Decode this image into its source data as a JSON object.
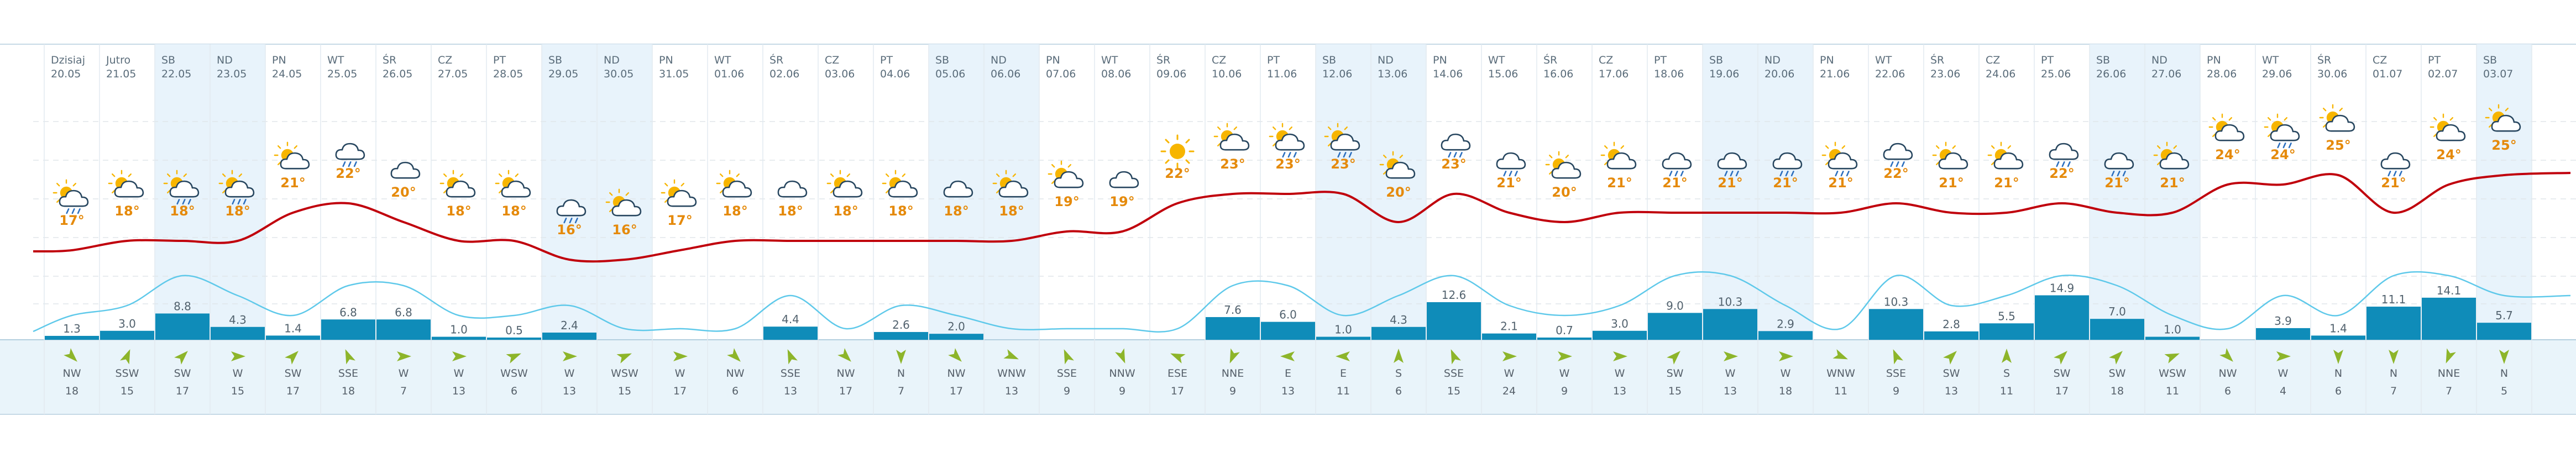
{
  "chart_data": {
    "type": "table",
    "days": [
      {
        "d": "Dzisiaj",
        "dt": "20.05",
        "wk": false,
        "icon": "sun-cloud-rain",
        "t": 17,
        "p": 1.3,
        "pc": 1,
        "dir": "NW",
        "dc": "#8db52a",
        "sp": 18
      },
      {
        "d": "Jutro",
        "dt": "21.05",
        "wk": false,
        "icon": "sun-cloud",
        "t": 18,
        "p": 3.0,
        "pc": 2,
        "dir": "SSW",
        "dc": "#8db52a",
        "sp": 15
      },
      {
        "d": "SB",
        "dt": "22.05",
        "wk": true,
        "icon": "sun-cloud-rain",
        "t": 18,
        "p": 8.8,
        "pc": 5,
        "dir": "SW",
        "dc": "#8db52a",
        "sp": 17
      },
      {
        "d": "ND",
        "dt": "23.05",
        "wk": true,
        "icon": "sun-cloud-rain",
        "t": 18,
        "p": 4.3,
        "pc": 3,
        "dir": "W",
        "dc": "#8db52a",
        "sp": 15
      },
      {
        "d": "PN",
        "dt": "24.05",
        "wk": false,
        "icon": "sun-cloud",
        "t": 21,
        "p": 1.4,
        "pc": 1,
        "dir": "SW",
        "dc": "#8db52a",
        "sp": 17
      },
      {
        "d": "WT",
        "dt": "25.05",
        "wk": false,
        "icon": "cloud-rain",
        "t": 22,
        "p": 6.8,
        "pc": 4,
        "dir": "SSE",
        "dc": "#8db52a",
        "sp": 18
      },
      {
        "d": "ŚR",
        "dt": "26.05",
        "wk": false,
        "icon": "cloud",
        "t": 20,
        "p": 6.8,
        "pc": 4,
        "dir": "W",
        "dc": "#8db52a",
        "sp": 7
      },
      {
        "d": "CZ",
        "dt": "27.05",
        "wk": false,
        "icon": "sun-cloud",
        "t": 18,
        "p": 1.0,
        "pc": 1,
        "dir": "W",
        "dc": "#8db52a",
        "sp": 13
      },
      {
        "d": "PT",
        "dt": "28.05",
        "wk": false,
        "icon": "sun-cloud",
        "t": 18,
        "p": 0.5,
        "pc": 1,
        "dir": "WSW",
        "dc": "#8db52a",
        "sp": 6
      },
      {
        "d": "SB",
        "dt": "29.05",
        "wk": true,
        "icon": "cloud-rain",
        "t": 16,
        "p": 2.4,
        "pc": 2,
        "dir": "W",
        "dc": "#8db52a",
        "sp": 13
      },
      {
        "d": "ND",
        "dt": "30.05",
        "wk": true,
        "icon": "sun-cloud",
        "t": 16,
        "p": null,
        "pc": 0,
        "dir": "WSW",
        "dc": "#8db52a",
        "sp": 15
      },
      {
        "d": "PN",
        "dt": "31.05",
        "wk": false,
        "icon": "sun-cloud",
        "t": 17,
        "p": null,
        "pc": 0,
        "dir": "W",
        "dc": "#8db52a",
        "sp": 17
      },
      {
        "d": "WT",
        "dt": "01.06",
        "wk": false,
        "icon": "sun-cloud",
        "t": 18,
        "p": null,
        "pc": 0,
        "dir": "NW",
        "dc": "#8db52a",
        "sp": 6
      },
      {
        "d": "ŚR",
        "dt": "02.06",
        "wk": false,
        "icon": "cloud",
        "t": 18,
        "p": 4.4,
        "pc": 3,
        "dir": "SSE",
        "dc": "#8db52a",
        "sp": 13
      },
      {
        "d": "CZ",
        "dt": "03.06",
        "wk": false,
        "icon": "sun-cloud",
        "t": 18,
        "p": null,
        "pc": 0,
        "dir": "NW",
        "dc": "#8db52a",
        "sp": 17
      },
      {
        "d": "PT",
        "dt": "04.06",
        "wk": false,
        "icon": "sun-cloud",
        "t": 18,
        "p": 2.6,
        "pc": 2,
        "dir": "N",
        "dc": "#8db52a",
        "sp": 7
      },
      {
        "d": "SB",
        "dt": "05.06",
        "wk": true,
        "icon": "cloud",
        "t": 18,
        "p": 2.0,
        "pc": 1,
        "dir": "NW",
        "dc": "#8db52a",
        "sp": 17
      },
      {
        "d": "ND",
        "dt": "06.06",
        "wk": true,
        "icon": "sun-cloud",
        "t": 18,
        "p": null,
        "pc": 0,
        "dir": "WNW",
        "dc": "#8db52a",
        "sp": 13
      },
      {
        "d": "PN",
        "dt": "07.06",
        "wk": false,
        "icon": "sun-cloud",
        "t": 19,
        "p": null,
        "pc": 0,
        "dir": "SSE",
        "dc": "#8db52a",
        "sp": 9
      },
      {
        "d": "WT",
        "dt": "08.06",
        "wk": false,
        "icon": "cloud",
        "t": 19,
        "p": null,
        "pc": 0,
        "dir": "NNW",
        "dc": "#8db52a",
        "sp": 9
      },
      {
        "d": "ŚR",
        "dt": "09.06",
        "wk": false,
        "icon": "sun",
        "t": 22,
        "p": null,
        "pc": 0,
        "dir": "ESE",
        "dc": "#8db52a",
        "sp": 17
      },
      {
        "d": "CZ",
        "dt": "10.06",
        "wk": false,
        "icon": "sun-cloud",
        "t": 23,
        "p": 7.6,
        "pc": 4,
        "dir": "NNE",
        "dc": "#8db52a",
        "sp": 9
      },
      {
        "d": "PT",
        "dt": "11.06",
        "wk": false,
        "icon": "sun-cloud-rain",
        "t": 23,
        "p": 6.0,
        "pc": 4,
        "dir": "E",
        "dc": "#8db52a",
        "sp": 13
      },
      {
        "d": "SB",
        "dt": "12.06",
        "wk": true,
        "icon": "sun-cloud-rain",
        "t": 23,
        "p": 1.0,
        "pc": 1,
        "dir": "E",
        "dc": "#8db52a",
        "sp": 11
      },
      {
        "d": "ND",
        "dt": "13.06",
        "wk": true,
        "icon": "sun-cloud",
        "t": 20,
        "p": 4.3,
        "pc": 3,
        "dir": "S",
        "dc": "#8db52a",
        "sp": 6
      },
      {
        "d": "PN",
        "dt": "14.06",
        "wk": false,
        "icon": "cloud-rain",
        "t": 23,
        "p": 12.6,
        "pc": 5,
        "dir": "SSE",
        "dc": "#8db52a",
        "sp": 15
      },
      {
        "d": "WT",
        "dt": "15.06",
        "wk": false,
        "icon": "cloud-rain",
        "t": 21,
        "p": 2.1,
        "pc": 2,
        "dir": "W",
        "dc": "#8db52a",
        "sp": 24
      },
      {
        "d": "ŚR",
        "dt": "16.06",
        "wk": false,
        "icon": "sun-cloud",
        "t": 20,
        "p": 0.7,
        "pc": 1,
        "dir": "W",
        "dc": "#8db52a",
        "sp": 9
      },
      {
        "d": "CZ",
        "dt": "17.06",
        "wk": false,
        "icon": "sun-cloud",
        "t": 21,
        "p": 3.0,
        "pc": 2,
        "dir": "W",
        "dc": "#8db52a",
        "sp": 13
      },
      {
        "d": "PT",
        "dt": "18.06",
        "wk": false,
        "icon": "cloud-rain",
        "t": 21,
        "p": 9.0,
        "pc": 5,
        "dir": "SW",
        "dc": "#8db52a",
        "sp": 15
      },
      {
        "d": "SB",
        "dt": "19.06",
        "wk": true,
        "icon": "cloud-rain",
        "t": 21,
        "p": 10.3,
        "pc": 5,
        "dir": "W",
        "dc": "#8db52a",
        "sp": 13
      },
      {
        "d": "ND",
        "dt": "20.06",
        "wk": true,
        "icon": "cloud-rain",
        "t": 21,
        "p": 2.9,
        "pc": 2,
        "dir": "W",
        "dc": "#8db52a",
        "sp": 18
      },
      {
        "d": "PN",
        "dt": "21.06",
        "wk": false,
        "icon": "sun-cloud-rain",
        "t": 21,
        "p": null,
        "pc": 0,
        "dir": "WNW",
        "dc": "#8db52a",
        "sp": 11
      },
      {
        "d": "WT",
        "dt": "22.06",
        "wk": false,
        "icon": "cloud-rain",
        "t": 22,
        "p": 10.3,
        "pc": 5,
        "dir": "SSE",
        "dc": "#8db52a",
        "sp": 9
      },
      {
        "d": "ŚR",
        "dt": "23.06",
        "wk": false,
        "icon": "sun-cloud",
        "t": 21,
        "p": 2.8,
        "pc": 2,
        "dir": "SW",
        "dc": "#8db52a",
        "sp": 13
      },
      {
        "d": "CZ",
        "dt": "24.06",
        "wk": false,
        "icon": "sun-cloud",
        "t": 21,
        "p": 5.5,
        "pc": 3,
        "dir": "S",
        "dc": "#8db52a",
        "sp": 11
      },
      {
        "d": "PT",
        "dt": "25.06",
        "wk": false,
        "icon": "cloud-rain",
        "t": 22,
        "p": 14.9,
        "pc": 5,
        "dir": "SW",
        "dc": "#8db52a",
        "sp": 17
      },
      {
        "d": "SB",
        "dt": "26.06",
        "wk": true,
        "icon": "cloud-rain",
        "t": 21,
        "p": 7.0,
        "pc": 4,
        "dir": "SW",
        "dc": "#8db52a",
        "sp": 18
      },
      {
        "d": "ND",
        "dt": "27.06",
        "wk": true,
        "icon": "sun-cloud",
        "t": 21,
        "p": 1.0,
        "pc": 1,
        "dir": "WSW",
        "dc": "#8db52a",
        "sp": 11
      },
      {
        "d": "PN",
        "dt": "28.06",
        "wk": false,
        "icon": "sun-cloud",
        "t": 24,
        "p": null,
        "pc": 0,
        "dir": "NW",
        "dc": "#8db52a",
        "sp": 6
      },
      {
        "d": "WT",
        "dt": "29.06",
        "wk": false,
        "icon": "sun-cloud-rain",
        "t": 24,
        "p": 3.9,
        "pc": 3,
        "dir": "W",
        "dc": "#8db52a",
        "sp": 4
      },
      {
        "d": "ŚR",
        "dt": "30.06",
        "wk": false,
        "icon": "sun-cloud",
        "t": 25,
        "p": 1.4,
        "pc": 1,
        "dir": "N",
        "dc": "#8db52a",
        "sp": 6
      },
      {
        "d": "CZ",
        "dt": "01.07",
        "wk": false,
        "icon": "cloud-rain",
        "t": 21,
        "p": 11.1,
        "pc": 5,
        "dir": "N",
        "dc": "#8db52a",
        "sp": 7
      },
      {
        "d": "PT",
        "dt": "02.07",
        "wk": false,
        "icon": "sun-cloud",
        "t": 24,
        "p": 14.1,
        "pc": 5,
        "dir": "NNE",
        "dc": "#8db52a",
        "sp": 7
      },
      {
        "d": "SB",
        "dt": "03.07",
        "wk": true,
        "icon": "sun-cloud",
        "t": 25,
        "p": 5.7,
        "pc": 3,
        "dir": "N",
        "dc": "#8db52a",
        "sp": 5
      }
    ]
  },
  "colors": {
    "weekend_bg": "#e8f3fb",
    "temp_curve": "#c0000c",
    "temp_label": "#e58a0b",
    "bar": "#0f8cb9",
    "humidity_curve": "#5fc9ea",
    "grid": "#e0e6ea",
    "header_text": "#5a6c7a",
    "bottom_band": "#e9f4fa"
  }
}
